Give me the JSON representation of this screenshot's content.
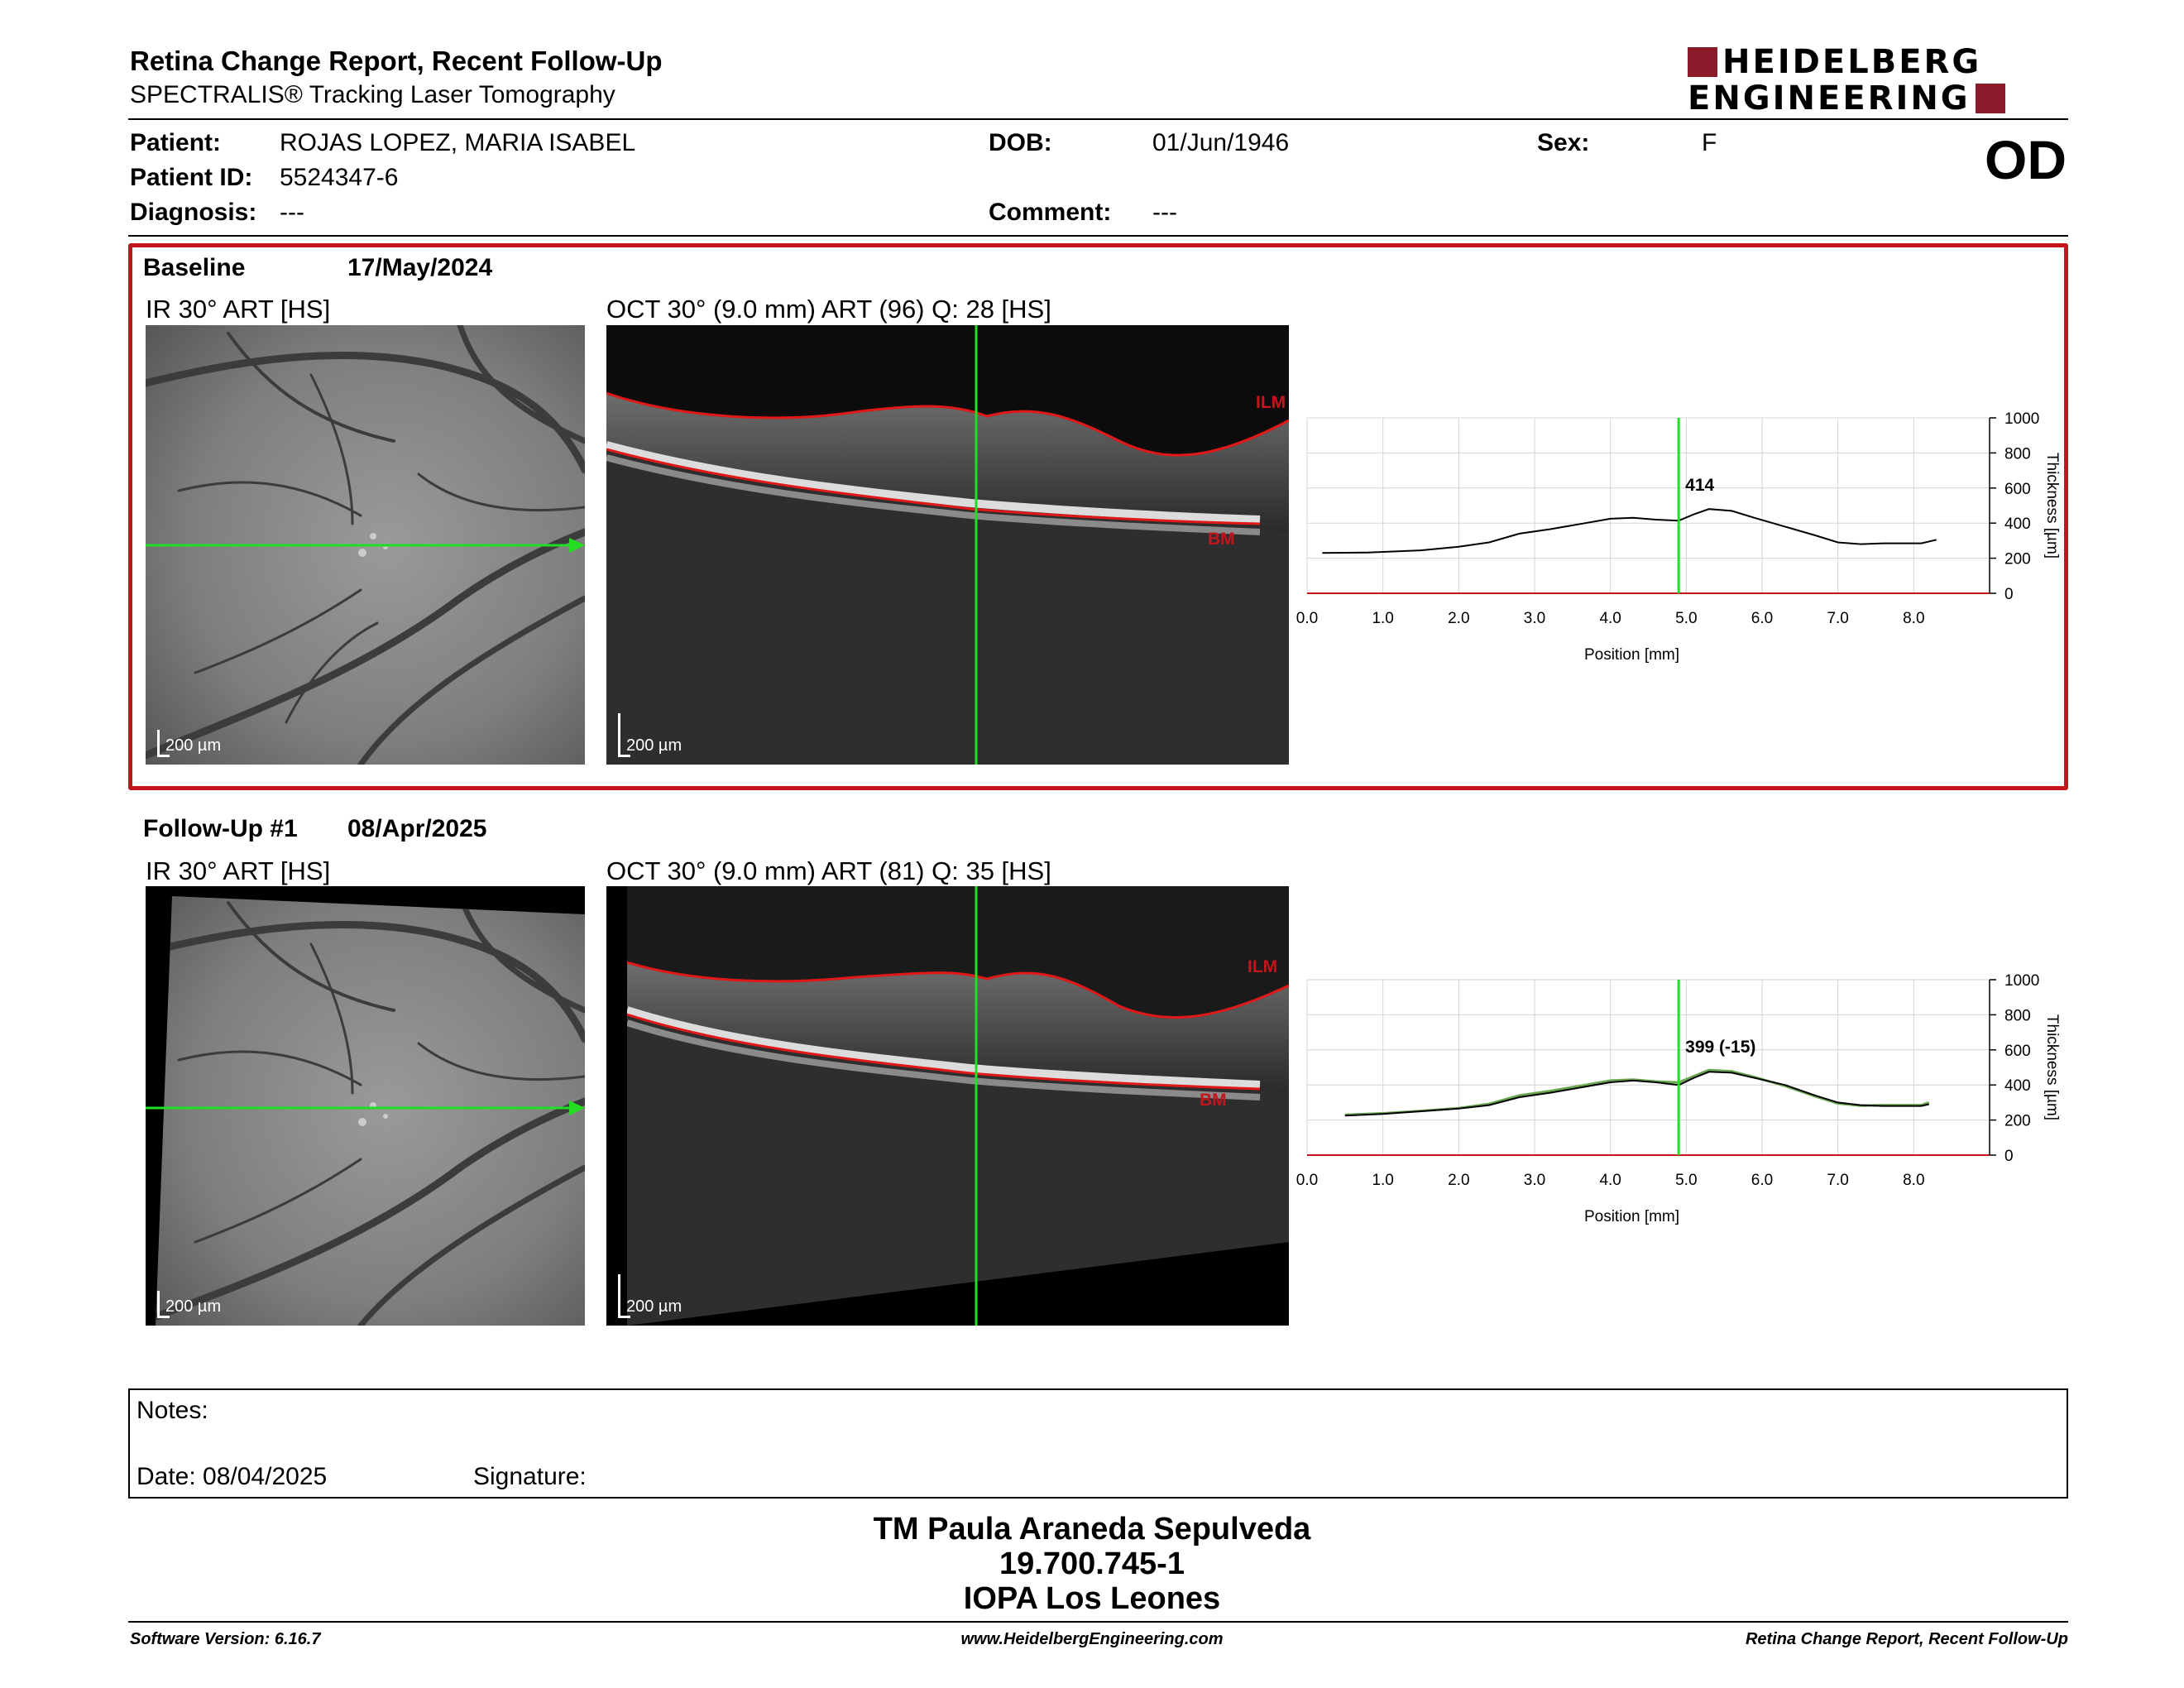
{
  "header": {
    "title": "Retina Change Report, Recent Follow-Up",
    "subtitle": "SPECTRALIS® Tracking Laser Tomography",
    "logo_line1": "HEIDELBERG",
    "logo_line2": "ENGINEERING",
    "eye": "OD"
  },
  "patient": {
    "patient_label": "Patient:",
    "patient_value": "ROJAS LOPEZ, MARIA ISABEL",
    "id_label": "Patient ID:",
    "id_value": "5524347-6",
    "diagnosis_label": "Diagnosis:",
    "diagnosis_value": "---",
    "dob_label": "DOB:",
    "dob_value": "01/Jun/1946",
    "comment_label": "Comment:",
    "comment_value": "---",
    "sex_label": "Sex:",
    "sex_value": "F"
  },
  "baseline": {
    "name": "Baseline",
    "date": "17/May/2024",
    "ir_title": "IR 30° ART [HS]",
    "oct_title": "OCT 30° (9.0 mm) ART (96) Q: 28 [HS]",
    "scale_ir": "200 µm",
    "scale_oct": "200 µm",
    "ilm": "ILM",
    "bm": "BM"
  },
  "followup": {
    "name": "Follow-Up #1",
    "date": "08/Apr/2025",
    "ir_title": "IR 30° ART [HS]",
    "oct_title": "OCT 30° (9.0 mm) ART (81) Q: 35 [HS]",
    "scale_ir": "200 µm",
    "scale_oct": "200 µm",
    "ilm": "ILM",
    "bm": "BM"
  },
  "chart_data": [
    {
      "type": "line",
      "xlabel": "Position [mm]",
      "ylabel": "Thickness [µm]",
      "xlim": [
        0,
        9.0
      ],
      "ylim": [
        0,
        1000
      ],
      "x_ticks": [
        "0.0",
        "1.0",
        "2.0",
        "3.0",
        "4.0",
        "5.0",
        "6.0",
        "7.0",
        "8.0"
      ],
      "y_ticks": [
        "0",
        "200",
        "400",
        "600",
        "800",
        "1000"
      ],
      "cursor_x": 4.9,
      "cursor_label": "414",
      "grid": true,
      "series": [
        {
          "x": [
            0.2,
            0.8,
            1.5,
            2.0,
            2.4,
            2.8,
            3.2,
            3.6,
            4.0,
            4.3,
            4.6,
            4.9,
            5.1,
            5.3,
            5.6,
            5.9,
            6.3,
            6.7,
            7.0,
            7.3,
            7.6,
            7.9,
            8.1,
            8.3
          ],
          "values": [
            230,
            232,
            245,
            265,
            290,
            340,
            365,
            395,
            425,
            430,
            420,
            414,
            450,
            480,
            470,
            430,
            380,
            330,
            290,
            280,
            285,
            285,
            285,
            305
          ],
          "color": "#000000"
        }
      ]
    },
    {
      "type": "line",
      "xlabel": "Position [mm]",
      "ylabel": "Thickness [µm]",
      "xlim": [
        0,
        9.0
      ],
      "ylim": [
        0,
        1000
      ],
      "x_ticks": [
        "0.0",
        "1.0",
        "2.0",
        "3.0",
        "4.0",
        "5.0",
        "6.0",
        "7.0",
        "8.0"
      ],
      "y_ticks": [
        "0",
        "200",
        "400",
        "600",
        "800",
        "1000"
      ],
      "cursor_x": 4.9,
      "cursor_label": "399 (-15)",
      "grid": true,
      "series": [
        {
          "x": [
            0.5,
            1.0,
            1.5,
            2.0,
            2.4,
            2.8,
            3.2,
            3.6,
            4.0,
            4.3,
            4.6,
            4.9,
            5.1,
            5.3,
            5.6,
            5.9,
            6.3,
            6.7,
            7.0,
            7.3,
            7.6,
            7.9,
            8.1,
            8.2
          ],
          "values": [
            225,
            235,
            250,
            265,
            285,
            330,
            355,
            385,
            415,
            425,
            415,
            399,
            440,
            475,
            470,
            440,
            400,
            340,
            300,
            285,
            280,
            280,
            280,
            290
          ],
          "color": "#000000"
        },
        {
          "x": [
            0.5,
            1.0,
            1.5,
            2.0,
            2.4,
            2.8,
            3.2,
            3.6,
            4.0,
            4.3,
            4.6,
            4.9,
            5.1,
            5.3,
            5.6,
            5.9,
            6.3,
            6.7,
            7.0,
            7.3,
            7.6,
            7.9,
            8.1,
            8.2
          ],
          "values": [
            230,
            238,
            252,
            268,
            292,
            340,
            365,
            395,
            425,
            430,
            420,
            414,
            450,
            485,
            478,
            445,
            395,
            335,
            295,
            282,
            285,
            285,
            285,
            300
          ],
          "color": "#6aa84f"
        }
      ]
    }
  ],
  "notes": {
    "notes_label": "Notes:",
    "date_label": "Date: 08/04/2025",
    "signature_label": "Signature:"
  },
  "signature": {
    "name": "TM Paula Araneda Sepulveda",
    "rut": "19.700.745-1",
    "place": "IOPA Los Leones"
  },
  "footer": {
    "software": "Software Version: 6.16.7",
    "website": "www.HeidelbergEngineering.com",
    "report": "Retina Change Report, Recent Follow-Up"
  }
}
